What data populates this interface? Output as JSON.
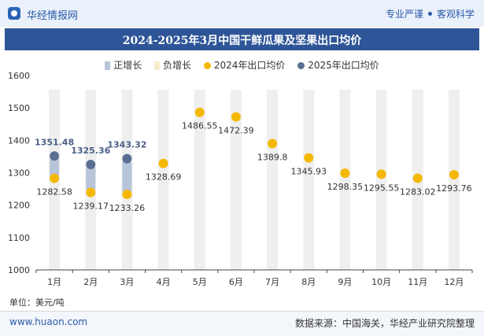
{
  "header": {
    "brand": "华经情报网",
    "slogan_left": "专业严谨",
    "slogan_right": "客观科学"
  },
  "chart_data": {
    "type": "line",
    "title": "2024-2025年3月中国干鲜瓜果及坚果出口均价",
    "categories": [
      "1月",
      "2月",
      "3月",
      "4月",
      "5月",
      "6月",
      "7月",
      "8月",
      "9月",
      "10月",
      "11月",
      "12月"
    ],
    "series": [
      {
        "name": "2024年出口均价",
        "color": "#f5b800",
        "values": [
          1282.58,
          1239.17,
          1233.26,
          1328.69,
          1486.55,
          1472.39,
          1389.8,
          1345.93,
          1298.35,
          1295.55,
          1283.02,
          1293.76
        ]
      },
      {
        "name": "2025年出口均价",
        "color": "#5b6f93",
        "values": [
          1351.48,
          1325.36,
          1343.32,
          null,
          null,
          null,
          null,
          null,
          null,
          null,
          null,
          null
        ]
      }
    ],
    "legend": [
      {
        "name": "正增长",
        "color": "#b8c4d8",
        "shape": "bar"
      },
      {
        "name": "负增长",
        "color": "#f6eccb",
        "shape": "bar"
      },
      {
        "name": "2024年出口均价",
        "color": "#f5b800",
        "shape": "dot"
      },
      {
        "name": "2025年出口均价",
        "color": "#5b6f93",
        "shape": "dot"
      }
    ],
    "yticks": [
      1000,
      1100,
      1200,
      1300,
      1400,
      1500,
      1600
    ],
    "ylim": [
      1000,
      1600
    ],
    "legend_position": "top"
  },
  "unit_label": "单位：美元/吨",
  "footer": {
    "site": "www.huaon.com",
    "source": "数据来源：中国海关，华经产业研究院整理"
  }
}
